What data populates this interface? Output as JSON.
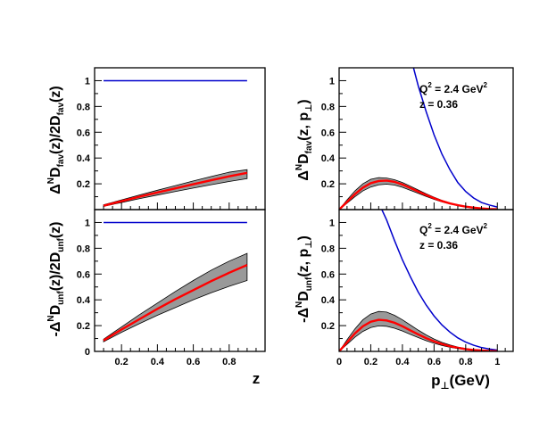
{
  "figure": {
    "left_xlabel": "z",
    "right_xlabel_main": "p",
    "right_xlabel_sub": "⊥",
    "right_xlabel_unit": "(GeV)"
  },
  "chart_data": [
    {
      "id": "fav-z",
      "type": "line",
      "ylabel_main": "Δ",
      "ylabel_sup": "N",
      "ylabel_rest": "D",
      "ylabel_sub": "fav",
      "ylabel_mid": "(z)/2D",
      "ylabel_sub2": "fav",
      "ylabel_end": "(z)",
      "xlim": [
        0.05,
        1.0
      ],
      "ylim": [
        0.0,
        1.1
      ],
      "xticks_major": [
        0.2,
        0.4,
        0.6,
        0.8
      ],
      "xticks_labeled": false,
      "yticks_labeled": [
        0.2,
        0.4,
        0.6,
        0.8,
        1
      ],
      "series": [
        {
          "color": "#0000cc",
          "x": [
            0.1,
            0.9
          ],
          "y": [
            1.0,
            1.0
          ]
        },
        {
          "color": "#ff0000",
          "band_color": "#999999",
          "x": [
            0.1,
            0.2,
            0.3,
            0.4,
            0.5,
            0.6,
            0.7,
            0.8,
            0.9
          ],
          "y": [
            0.03,
            0.065,
            0.1,
            0.133,
            0.165,
            0.197,
            0.228,
            0.258,
            0.285
          ],
          "y_low": [
            0.025,
            0.055,
            0.085,
            0.113,
            0.14,
            0.167,
            0.193,
            0.218,
            0.24
          ],
          "y_high": [
            0.037,
            0.075,
            0.113,
            0.15,
            0.186,
            0.222,
            0.257,
            0.29,
            0.31
          ]
        }
      ]
    },
    {
      "id": "fav-pt",
      "type": "line",
      "ylabel_main": "Δ",
      "ylabel_sup": "N",
      "ylabel_rest": "D",
      "ylabel_sub": "fav",
      "ylabel_mid": "(z, p",
      "ylabel_sub2": "⊥",
      "ylabel_end": ")",
      "annotation_q": "Q",
      "annotation_q_sup": "2",
      "annotation_q_rest": " = 2.4 GeV",
      "annotation_q_sup2": "2",
      "annotation_z": "z = 0.36",
      "xlim": [
        0.0,
        1.1
      ],
      "ylim": [
        0.0,
        1.1
      ],
      "xticks_major": [
        0,
        0.2,
        0.4,
        0.6,
        0.8,
        1
      ],
      "xticks_labeled": false,
      "yticks_labeled": [
        0.2,
        0.4,
        0.6,
        0.8,
        1
      ],
      "series": [
        {
          "color": "#0000cc",
          "x": [
            0.47,
            0.5,
            0.55,
            0.6,
            0.65,
            0.7,
            0.75,
            0.8,
            0.85,
            0.9,
            0.95,
            1.0
          ],
          "y": [
            1.1,
            0.96,
            0.76,
            0.58,
            0.43,
            0.31,
            0.21,
            0.14,
            0.09,
            0.055,
            0.035,
            0.02
          ]
        },
        {
          "color": "#ff0000",
          "band_color": "#999999",
          "x": [
            0.0,
            0.05,
            0.1,
            0.15,
            0.2,
            0.25,
            0.3,
            0.35,
            0.4,
            0.45,
            0.5,
            0.55,
            0.6,
            0.65,
            0.7,
            0.75,
            0.8,
            0.85,
            0.9,
            0.95,
            1.0
          ],
          "y": [
            0.0,
            0.06,
            0.12,
            0.17,
            0.205,
            0.222,
            0.225,
            0.215,
            0.195,
            0.168,
            0.14,
            0.113,
            0.088,
            0.066,
            0.048,
            0.034,
            0.023,
            0.015,
            0.009,
            0.005,
            0.003
          ],
          "y_low": [
            0.0,
            0.05,
            0.1,
            0.145,
            0.175,
            0.192,
            0.197,
            0.19,
            0.173,
            0.15,
            0.126,
            0.102,
            0.08,
            0.06,
            0.044,
            0.031,
            0.021,
            0.013,
            0.008,
            0.004,
            0.002
          ],
          "y_high": [
            0.0,
            0.075,
            0.145,
            0.2,
            0.235,
            0.248,
            0.245,
            0.232,
            0.21,
            0.182,
            0.152,
            0.123,
            0.096,
            0.072,
            0.052,
            0.037,
            0.025,
            0.016,
            0.01,
            0.006,
            0.003
          ]
        }
      ]
    },
    {
      "id": "unf-z",
      "type": "line",
      "ylabel_main": "-Δ",
      "ylabel_sup": "N",
      "ylabel_rest": "D",
      "ylabel_sub": "unf",
      "ylabel_mid": "(z)/2D",
      "ylabel_sub2": "unf",
      "ylabel_end": "(z)",
      "xlim": [
        0.05,
        1.0
      ],
      "ylim": [
        0.0,
        1.1
      ],
      "xticks_labeled": [
        0.2,
        0.4,
        0.6,
        0.8
      ],
      "yticks_labeled": [
        0,
        0.2,
        0.4,
        0.6,
        0.8,
        1
      ],
      "series": [
        {
          "color": "#0000cc",
          "x": [
            0.1,
            0.9
          ],
          "y": [
            1.0,
            1.0
          ]
        },
        {
          "color": "#ff0000",
          "band_color": "#999999",
          "x": [
            0.1,
            0.2,
            0.3,
            0.4,
            0.5,
            0.6,
            0.7,
            0.8,
            0.9
          ],
          "y": [
            0.085,
            0.17,
            0.25,
            0.33,
            0.405,
            0.475,
            0.545,
            0.61,
            0.67
          ],
          "y_low": [
            0.075,
            0.148,
            0.215,
            0.28,
            0.34,
            0.4,
            0.455,
            0.505,
            0.55
          ],
          "y_high": [
            0.095,
            0.19,
            0.285,
            0.375,
            0.465,
            0.55,
            0.63,
            0.7,
            0.76
          ]
        }
      ]
    },
    {
      "id": "unf-pt",
      "type": "line",
      "ylabel_main": "-Δ",
      "ylabel_sup": "N",
      "ylabel_rest": "D",
      "ylabel_sub": "unf",
      "ylabel_mid": "(z, p",
      "ylabel_sub2": "⊥",
      "ylabel_end": ")",
      "annotation_q": "Q",
      "annotation_q_sup": "2",
      "annotation_q_rest": " = 2.4 GeV",
      "annotation_q_sup2": "2",
      "annotation_z": "z = 0.36",
      "xlim": [
        0.0,
        1.1
      ],
      "ylim": [
        0.0,
        1.1
      ],
      "xticks_labeled": [
        0,
        0.2,
        0.4,
        0.6,
        0.8,
        1
      ],
      "yticks_labeled": [
        0.2,
        0.4,
        0.6,
        0.8,
        1
      ],
      "series": [
        {
          "color": "#0000cc",
          "x": [
            0.27,
            0.3,
            0.35,
            0.4,
            0.45,
            0.5,
            0.55,
            0.6,
            0.65,
            0.7,
            0.75,
            0.8,
            0.85,
            0.9,
            0.95,
            1.0
          ],
          "y": [
            1.1,
            1.02,
            0.86,
            0.71,
            0.58,
            0.46,
            0.36,
            0.275,
            0.205,
            0.15,
            0.105,
            0.072,
            0.048,
            0.03,
            0.018,
            0.01
          ]
        },
        {
          "color": "#ff0000",
          "band_color": "#999999",
          "x": [
            0.0,
            0.05,
            0.1,
            0.15,
            0.2,
            0.25,
            0.3,
            0.35,
            0.4,
            0.45,
            0.5,
            0.55,
            0.6,
            0.65,
            0.7,
            0.75,
            0.8,
            0.85,
            0.9,
            0.95,
            1.0
          ],
          "y": [
            0.0,
            0.07,
            0.14,
            0.195,
            0.23,
            0.245,
            0.24,
            0.222,
            0.195,
            0.163,
            0.132,
            0.103,
            0.078,
            0.057,
            0.04,
            0.028,
            0.018,
            0.011,
            0.007,
            0.004,
            0.002
          ],
          "y_low": [
            0.0,
            0.055,
            0.11,
            0.155,
            0.185,
            0.198,
            0.195,
            0.18,
            0.158,
            0.132,
            0.107,
            0.083,
            0.063,
            0.046,
            0.032,
            0.022,
            0.014,
            0.009,
            0.005,
            0.003,
            0.001
          ],
          "y_high": [
            0.0,
            0.09,
            0.175,
            0.245,
            0.29,
            0.31,
            0.305,
            0.28,
            0.245,
            0.205,
            0.165,
            0.128,
            0.096,
            0.07,
            0.05,
            0.034,
            0.022,
            0.014,
            0.008,
            0.005,
            0.003
          ]
        }
      ]
    }
  ]
}
